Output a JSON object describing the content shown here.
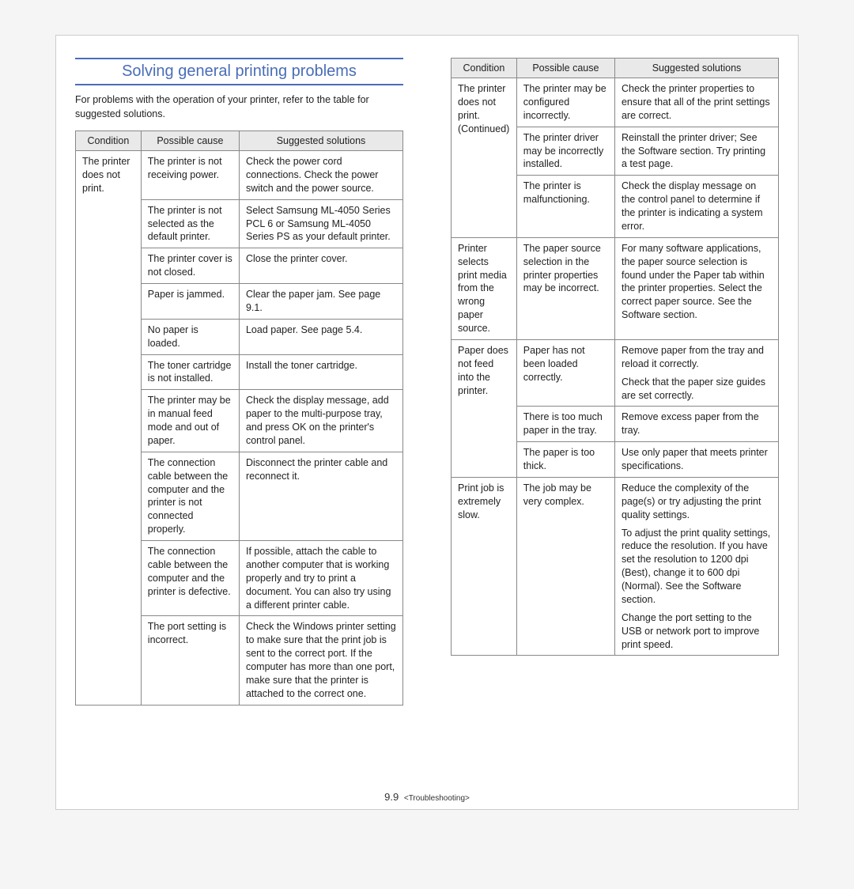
{
  "heading": "Solving general printing problems",
  "intro": "For problems with the operation of your printer, refer to the table for suggested solutions.",
  "headers": {
    "condition": "Condition",
    "cause": "Possible cause",
    "solution": "Suggested solutions"
  },
  "left": {
    "condition": "The printer does not print.",
    "rows": [
      {
        "cause": "The printer is not receiving power.",
        "solution": "Check the power cord connections. Check the power switch and the power source."
      },
      {
        "cause": "The printer is not selected as the default printer.",
        "solution": "Select Samsung ML-4050 Series PCL 6 or Samsung ML-4050 Series PS as your default printer."
      },
      {
        "cause": "The printer cover is not closed.",
        "solution": "Close the printer cover."
      },
      {
        "cause": "Paper is jammed.",
        "solution": "Clear the paper jam. See page 9.1."
      },
      {
        "cause": "No paper is loaded.",
        "solution": "Load paper. See page 5.4."
      },
      {
        "cause": "The toner cartridge is not installed.",
        "solution": "Install the toner cartridge."
      },
      {
        "cause": "The printer may be in manual feed mode and out of paper.",
        "solution": "Check the display message, add paper to the multi-purpose tray, and press OK on the printer's control panel."
      },
      {
        "cause": "The connection cable between the computer and the printer is not connected properly.",
        "solution": "Disconnect the printer cable and reconnect it."
      },
      {
        "cause": "The connection cable between the computer and the printer is defective.",
        "solution": "If possible, attach the cable to another computer that is working properly and try to print a document. You can also try using a different printer cable."
      },
      {
        "cause": "The port setting is incorrect.",
        "solution": "Check the Windows printer setting to make sure that the print job is sent to the correct port. If the computer has more than one port, make sure that the printer is attached to the correct one."
      }
    ]
  },
  "right": {
    "groups": [
      {
        "condition": "The printer does not print. (Continued)",
        "rows": [
          {
            "cause": "The printer may be configured incorrectly.",
            "solution": "Check the printer properties to ensure that all of the print settings are correct."
          },
          {
            "cause": "The printer driver may be incorrectly installed.",
            "solution": "Reinstall the printer driver; See the Software section. Try printing a test page."
          },
          {
            "cause": "The printer is malfunctioning.",
            "solution": "Check the display message on the control panel to determine if the printer is indicating a system error."
          }
        ]
      },
      {
        "condition": "Printer selects print media from the wrong paper source.",
        "rows": [
          {
            "cause": "The paper source selection in the printer properties may be incorrect.",
            "solution": "For many software applications, the paper source selection is found under the Paper tab within the printer properties. Select the correct paper source. See the Software section."
          }
        ]
      },
      {
        "condition": "Paper does not feed into the printer.",
        "rows": [
          {
            "cause": "Paper has not been loaded correctly.",
            "solutions": [
              "Remove paper from the tray and reload it correctly.",
              "Check that the paper size guides are set correctly."
            ]
          },
          {
            "cause": "There is too much paper in the tray.",
            "solution": "Remove excess paper from the tray."
          },
          {
            "cause": "The paper is too thick.",
            "solution": "Use only paper that meets printer specifications."
          }
        ]
      },
      {
        "condition": "Print job is extremely slow.",
        "rows": [
          {
            "cause": "The job may be very complex.",
            "solutions": [
              "Reduce the complexity of the page(s) or try adjusting the print quality settings.",
              "To adjust the print quality settings, reduce the resolution. If you have set the resolution to 1200 dpi (Best), change it to 600 dpi (Normal). See the Software section.",
              "Change the port setting to the USB or network port to improve print speed."
            ]
          }
        ]
      }
    ]
  },
  "footer": {
    "page": "9.9",
    "section": "<Troubleshooting>"
  }
}
